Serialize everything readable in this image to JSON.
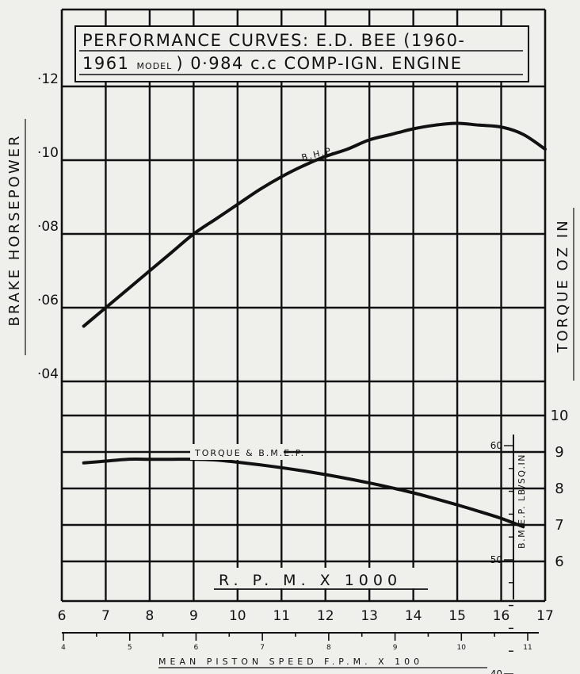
{
  "chart_data": {
    "type": "line",
    "title_line1": "PERFORMANCE CURVES: E.D. BEE (1960-",
    "title_line2_a": "1961",
    "title_line2_b": "MODEL",
    "title_line2_c": ") 0·984 c.c COMP-IGN. ENGINE",
    "xlabel": "R. P. M. X 1000",
    "ylabel": "BRAKE HORSEPOWER",
    "y2label": "TORQUE OZ IN",
    "x2label": "MEAN PISTON SPEED F.P.M. X 100",
    "bmep_label": "B.M.E.P. LB/SQ.IN",
    "x_ticks": [
      "6",
      "7",
      "8",
      "9",
      "10",
      "11",
      "12",
      "13",
      "14",
      "15",
      "16",
      "17"
    ],
    "bhp_ticks": [
      {
        "value": 0.12,
        "label": "·12"
      },
      {
        "value": 0.1,
        "label": "·10"
      },
      {
        "value": 0.08,
        "label": "·08"
      },
      {
        "value": 0.06,
        "label": "·06"
      },
      {
        "value": 0.04,
        "label": "·04"
      }
    ],
    "torque_ticks": [
      {
        "value": 10,
        "label": "10"
      },
      {
        "value": 9,
        "label": "9"
      },
      {
        "value": 8,
        "label": "8"
      },
      {
        "value": 7,
        "label": "7"
      },
      {
        "value": 6,
        "label": "6"
      }
    ],
    "bmep_ticks": [
      {
        "value": 60,
        "label": "60"
      },
      {
        "value": 50,
        "label": "50"
      },
      {
        "value": 40,
        "label": "40"
      }
    ],
    "piston_speed_ticks": [
      "4",
      "5",
      "6",
      "7",
      "8",
      "9",
      "10",
      "11"
    ],
    "series": [
      {
        "name": "B.H.P.",
        "axis": "bhp",
        "x": [
          6.5,
          7.0,
          7.5,
          8.0,
          8.5,
          9.0,
          9.5,
          10.0,
          10.5,
          11.0,
          11.5,
          12.0,
          12.5,
          13.0,
          13.5,
          14.0,
          14.5,
          15.0,
          15.5,
          16.0,
          16.5,
          17.0
        ],
        "values": [
          0.055,
          0.06,
          0.065,
          0.07,
          0.075,
          0.08,
          0.084,
          0.088,
          0.092,
          0.0955,
          0.0985,
          0.101,
          0.103,
          0.1055,
          0.107,
          0.1085,
          0.1095,
          0.11,
          0.1095,
          0.109,
          0.107,
          0.103
        ]
      },
      {
        "name": "TORQUE & B.M.E.P.",
        "axis": "torque",
        "x": [
          6.5,
          7.0,
          7.5,
          8.0,
          8.5,
          9.0,
          9.5,
          10.0,
          10.5,
          11.0,
          11.5,
          12.0,
          12.5,
          13.0,
          13.5,
          14.0,
          14.5,
          15.0,
          15.5,
          16.0,
          16.5
        ],
        "values": [
          8.7,
          8.75,
          8.8,
          8.8,
          8.8,
          8.8,
          8.78,
          8.72,
          8.65,
          8.57,
          8.48,
          8.38,
          8.27,
          8.15,
          8.02,
          7.88,
          7.72,
          7.55,
          7.37,
          7.18,
          6.95
        ]
      }
    ]
  }
}
